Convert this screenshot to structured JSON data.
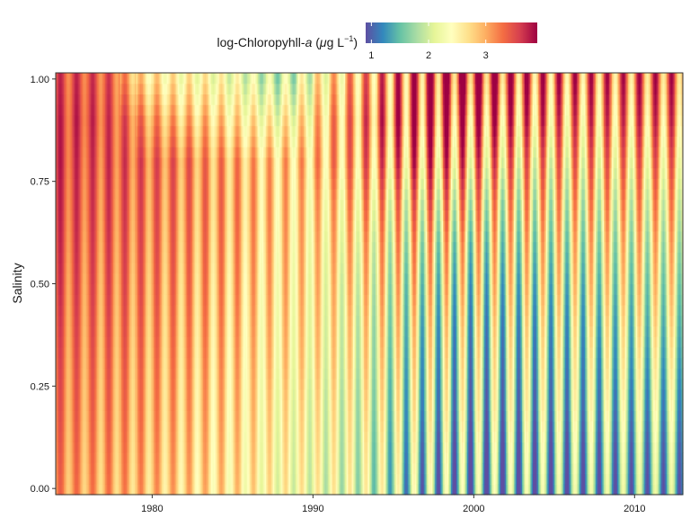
{
  "chart_data": {
    "type": "heatmap",
    "title": "",
    "xlabel": "",
    "ylabel": "Salinity",
    "legend": {
      "title_prefix": "log-Chloropyhll-",
      "title_italic": "a",
      "title_open": " (",
      "title_mu": "μ",
      "title_unit": "g L",
      "title_exponent": "−1",
      "title_close": ")",
      "placement": "top",
      "ticks": [
        "1",
        "2",
        "3"
      ],
      "range": [
        0.9,
        3.9
      ]
    },
    "x_ticks": [
      "1980",
      "1990",
      "2000",
      "2010"
    ],
    "x_tick_values": [
      1980,
      1990,
      2000,
      2010
    ],
    "xlim": [
      1974,
      2013
    ],
    "y_ticks": [
      "0.00",
      "0.25",
      "0.50",
      "0.75",
      "1.00"
    ],
    "y_tick_values": [
      0,
      0.25,
      0.5,
      0.75,
      1
    ],
    "ylim": [
      -0.015,
      1.015
    ],
    "grid": false,
    "colorscale": [
      "#5e4fa2",
      "#3288bd",
      "#66c2a5",
      "#abdda4",
      "#e6f598",
      "#ffffbf",
      "#fee08b",
      "#fdae61",
      "#f46d43",
      "#d53e4f",
      "#9e0142"
    ],
    "salinity_levels": [
      0.0,
      0.1,
      0.2,
      0.3,
      0.4,
      0.5,
      0.6,
      0.7,
      0.8,
      0.9,
      1.0
    ],
    "seasonal_amplitude": [
      0.35,
      0.35,
      0.36,
      0.37,
      0.38,
      0.39,
      0.4,
      0.41,
      0.42,
      0.43,
      0.44,
      0.45,
      0.46,
      0.47,
      0.48,
      0.5,
      0.54,
      0.58,
      0.62,
      0.7,
      0.8,
      0.88,
      0.92,
      0.95,
      0.96,
      0.97,
      0.96,
      0.95,
      0.93,
      0.92,
      0.9,
      0.88,
      0.86,
      0.84,
      0.82,
      0.8,
      0.79,
      0.78,
      0.77
    ],
    "annual_mean": [
      {
        "year": 1974,
        "values": [
          3.1,
          3.15,
          3.2,
          3.25,
          3.3,
          3.35,
          3.4,
          3.45,
          3.5,
          3.5,
          3.45
        ]
      },
      {
        "year": 1975,
        "values": [
          3.05,
          3.1,
          3.15,
          3.2,
          3.25,
          3.3,
          3.35,
          3.4,
          3.45,
          3.5,
          3.45
        ]
      },
      {
        "year": 1976,
        "values": [
          3.0,
          3.05,
          3.1,
          3.15,
          3.2,
          3.25,
          3.3,
          3.35,
          3.4,
          3.45,
          3.4
        ]
      },
      {
        "year": 1977,
        "values": [
          3.0,
          3.05,
          3.1,
          3.15,
          3.2,
          3.25,
          3.3,
          3.35,
          3.4,
          3.4,
          3.35
        ]
      },
      {
        "year": 1978,
        "values": [
          2.95,
          3.0,
          3.05,
          3.1,
          3.15,
          3.2,
          3.25,
          3.3,
          3.35,
          3.3,
          3.0
        ]
      },
      {
        "year": 1979,
        "values": [
          2.9,
          2.95,
          3.0,
          3.05,
          3.1,
          3.15,
          3.2,
          3.25,
          3.3,
          3.1,
          2.7
        ]
      },
      {
        "year": 1980,
        "values": [
          2.85,
          2.9,
          2.95,
          3.0,
          3.05,
          3.1,
          3.15,
          3.2,
          3.25,
          3.0,
          2.6
        ]
      },
      {
        "year": 1981,
        "values": [
          2.8,
          2.85,
          2.9,
          2.95,
          3.0,
          3.05,
          3.1,
          3.15,
          3.2,
          2.9,
          2.5
        ]
      },
      {
        "year": 1982,
        "values": [
          2.75,
          2.8,
          2.85,
          2.9,
          2.95,
          3.0,
          3.05,
          3.1,
          3.15,
          2.85,
          2.45
        ]
      },
      {
        "year": 1983,
        "values": [
          2.7,
          2.75,
          2.8,
          2.85,
          2.9,
          2.95,
          3.0,
          3.05,
          3.05,
          2.8,
          2.4
        ]
      },
      {
        "year": 1984,
        "values": [
          2.65,
          2.7,
          2.75,
          2.8,
          2.85,
          2.9,
          2.95,
          3.0,
          3.0,
          2.7,
          2.3
        ]
      },
      {
        "year": 1985,
        "values": [
          2.6,
          2.65,
          2.7,
          2.75,
          2.8,
          2.85,
          2.9,
          2.95,
          2.95,
          2.6,
          2.2
        ]
      },
      {
        "year": 1986,
        "values": [
          2.5,
          2.55,
          2.6,
          2.65,
          2.7,
          2.75,
          2.8,
          2.85,
          2.85,
          2.5,
          2.05
        ]
      },
      {
        "year": 1987,
        "values": [
          2.4,
          2.45,
          2.5,
          2.6,
          2.65,
          2.7,
          2.75,
          2.8,
          2.8,
          2.4,
          1.95
        ]
      },
      {
        "year": 1988,
        "values": [
          2.35,
          2.4,
          2.45,
          2.55,
          2.6,
          2.65,
          2.7,
          2.75,
          2.8,
          2.45,
          2.0
        ]
      },
      {
        "year": 1989,
        "values": [
          2.3,
          2.35,
          2.4,
          2.5,
          2.55,
          2.6,
          2.65,
          2.7,
          2.8,
          2.55,
          2.2
        ]
      },
      {
        "year": 1990,
        "values": [
          2.25,
          2.3,
          2.35,
          2.45,
          2.5,
          2.55,
          2.6,
          2.7,
          2.85,
          2.75,
          2.5
        ]
      },
      {
        "year": 1991,
        "values": [
          2.2,
          2.25,
          2.3,
          2.4,
          2.45,
          2.5,
          2.6,
          2.7,
          2.9,
          2.9,
          2.7
        ]
      },
      {
        "year": 1992,
        "values": [
          2.15,
          2.2,
          2.25,
          2.35,
          2.4,
          2.5,
          2.6,
          2.75,
          2.95,
          3.0,
          2.9
        ]
      },
      {
        "year": 1993,
        "values": [
          2.05,
          2.1,
          2.2,
          2.3,
          2.35,
          2.45,
          2.55,
          2.75,
          3.0,
          3.1,
          3.0
        ]
      },
      {
        "year": 1994,
        "values": [
          1.95,
          2.0,
          2.1,
          2.2,
          2.3,
          2.4,
          2.5,
          2.7,
          3.0,
          3.15,
          3.1
        ]
      },
      {
        "year": 1995,
        "values": [
          1.8,
          1.9,
          2.0,
          2.1,
          2.2,
          2.3,
          2.45,
          2.65,
          3.0,
          3.2,
          3.2
        ]
      },
      {
        "year": 1996,
        "values": [
          1.7,
          1.8,
          1.95,
          2.05,
          2.15,
          2.3,
          2.45,
          2.7,
          3.05,
          3.25,
          3.3
        ]
      },
      {
        "year": 1997,
        "values": [
          1.65,
          1.75,
          1.9,
          2.0,
          2.1,
          2.25,
          2.4,
          2.7,
          3.05,
          3.3,
          3.4
        ]
      },
      {
        "year": 1998,
        "values": [
          1.6,
          1.7,
          1.85,
          1.95,
          2.05,
          2.2,
          2.35,
          2.65,
          3.0,
          3.25,
          3.45
        ]
      },
      {
        "year": 1999,
        "values": [
          1.55,
          1.65,
          1.8,
          1.9,
          2.0,
          2.15,
          2.3,
          2.6,
          2.95,
          3.2,
          3.5
        ]
      },
      {
        "year": 2000,
        "values": [
          1.55,
          1.65,
          1.8,
          1.9,
          2.0,
          2.15,
          2.3,
          2.55,
          2.9,
          3.2,
          3.45
        ]
      },
      {
        "year": 2001,
        "values": [
          1.55,
          1.65,
          1.8,
          1.9,
          2.0,
          2.15,
          2.3,
          2.5,
          2.85,
          3.15,
          3.4
        ]
      },
      {
        "year": 2002,
        "values": [
          1.55,
          1.65,
          1.8,
          1.9,
          2.0,
          2.15,
          2.3,
          2.5,
          2.8,
          3.1,
          3.3
        ]
      },
      {
        "year": 2003,
        "values": [
          1.55,
          1.65,
          1.8,
          1.9,
          2.0,
          2.15,
          2.3,
          2.5,
          2.75,
          3.05,
          3.25
        ]
      },
      {
        "year": 2004,
        "values": [
          1.55,
          1.65,
          1.8,
          1.9,
          2.0,
          2.15,
          2.3,
          2.5,
          2.75,
          3.05,
          3.2
        ]
      },
      {
        "year": 2005,
        "values": [
          1.55,
          1.65,
          1.8,
          1.9,
          2.0,
          2.15,
          2.3,
          2.5,
          2.75,
          3.0,
          3.2
        ]
      },
      {
        "year": 2006,
        "values": [
          1.55,
          1.65,
          1.8,
          1.9,
          2.0,
          2.15,
          2.3,
          2.5,
          2.75,
          3.0,
          3.2
        ]
      },
      {
        "year": 2007,
        "values": [
          1.55,
          1.65,
          1.8,
          1.9,
          2.05,
          2.2,
          2.35,
          2.55,
          2.8,
          3.05,
          3.2
        ]
      },
      {
        "year": 2008,
        "values": [
          1.55,
          1.65,
          1.8,
          1.95,
          2.05,
          2.2,
          2.35,
          2.55,
          2.8,
          3.05,
          3.2
        ]
      },
      {
        "year": 2009,
        "values": [
          1.55,
          1.65,
          1.8,
          1.95,
          2.05,
          2.2,
          2.35,
          2.55,
          2.8,
          3.05,
          3.2
        ]
      },
      {
        "year": 2010,
        "values": [
          1.55,
          1.65,
          1.8,
          1.95,
          2.1,
          2.25,
          2.4,
          2.6,
          2.85,
          3.1,
          3.25
        ]
      },
      {
        "year": 2011,
        "values": [
          1.55,
          1.65,
          1.8,
          1.95,
          2.1,
          2.25,
          2.4,
          2.6,
          2.85,
          3.1,
          3.25
        ]
      },
      {
        "year": 2012,
        "values": [
          1.55,
          1.65,
          1.8,
          1.95,
          2.1,
          2.25,
          2.4,
          2.6,
          2.85,
          3.1,
          3.25
        ]
      }
    ]
  }
}
